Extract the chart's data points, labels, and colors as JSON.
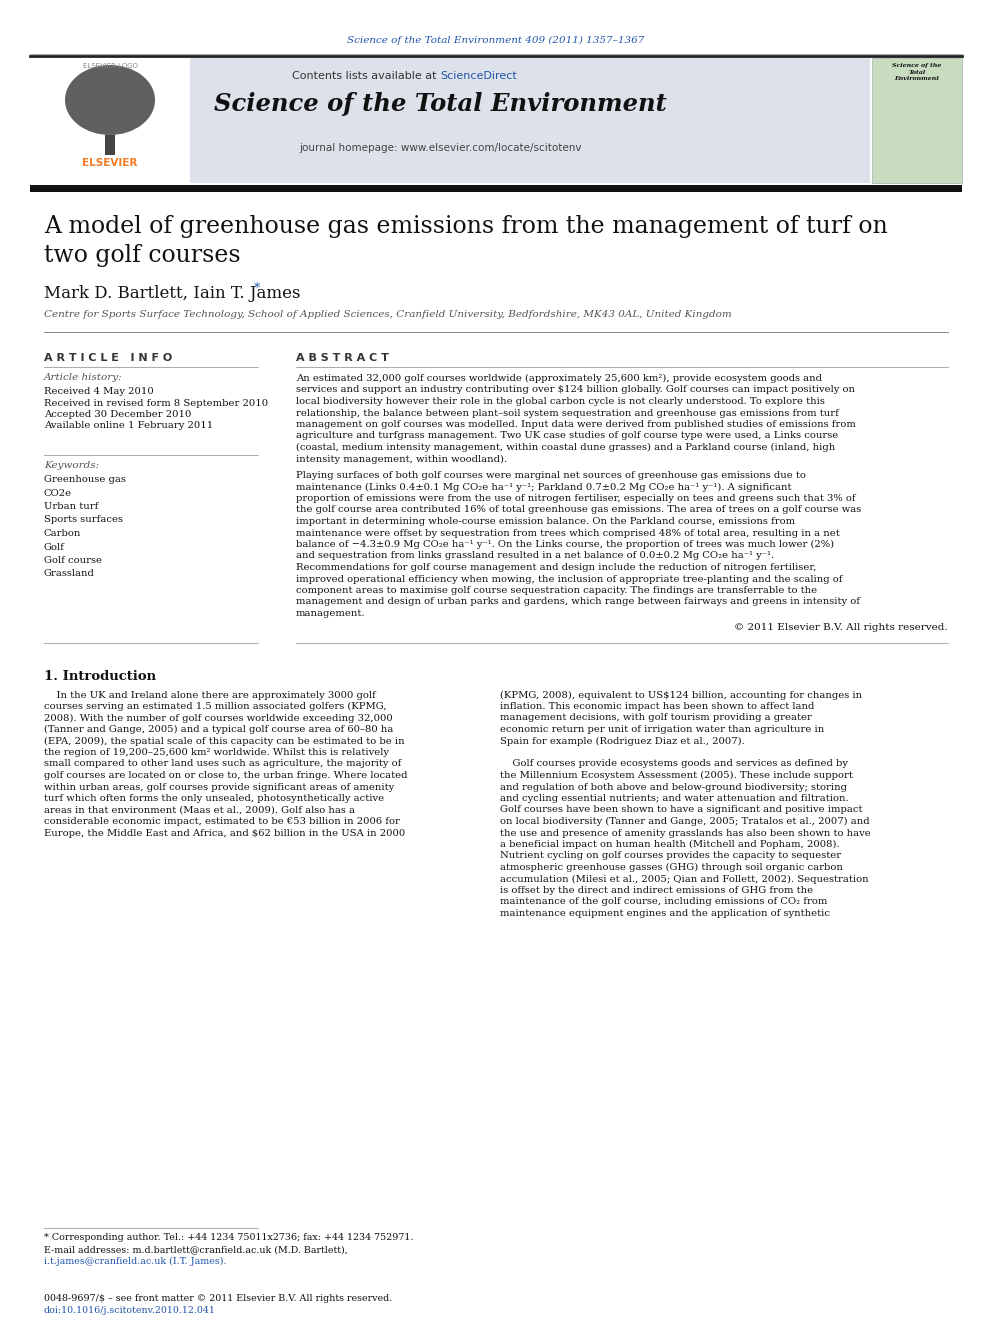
{
  "page_width": 9.92,
  "page_height": 13.23,
  "bg_color": "#ffffff",
  "top_journal_ref": "Science of the Total Environment 409 (2011) 1357–1367",
  "top_ref_color": "#2255aa",
  "header_text_line1": "Contents lists available at",
  "header_sciencedirect": "ScienceDirect",
  "header_journal_title": "Science of the Total Environment",
  "header_homepage": "journal homepage: www.elsevier.com/locate/scitotenv",
  "link_color": "#2255aa",
  "article_title_line1": "A model of greenhouse gas emissions from the management of turf on",
  "article_title_line2": "two golf courses",
  "authors": "Mark D. Bartlett, Iain T. James ",
  "author_star": "*",
  "affiliation": "Centre for Sports Surface Technology, School of Applied Sciences, Cranfield University, Bedfordshire, MK43 0AL, United Kingdom",
  "article_info_label": "A R T I C L E   I N F O",
  "abstract_label": "A B S T R A C T",
  "article_history_label": "Article history:",
  "received1": "Received 4 May 2010",
  "received2": "Received in revised form 8 September 2010",
  "accepted": "Accepted 30 December 2010",
  "available": "Available online 1 February 2011",
  "keywords_label": "Keywords:",
  "keywords": [
    "Greenhouse gas",
    "CO2e",
    "Urban turf",
    "Sports surfaces",
    "Carbon",
    "Golf",
    "Golf course",
    "Grassland"
  ],
  "abstract_lines1": [
    "An estimated 32,000 golf courses worldwide (approximately 25,600 km²), provide ecosystem goods and",
    "services and support an industry contributing over $124 billion globally. Golf courses can impact positively on",
    "local biodiversity however their role in the global carbon cycle is not clearly understood. To explore this",
    "relationship, the balance between plant–soil system sequestration and greenhouse gas emissions from turf",
    "management on golf courses was modelled. Input data were derived from published studies of emissions from",
    "agriculture and turfgrass management. Two UK case studies of golf course type were used, a Links course",
    "(coastal, medium intensity management, within coastal dune grasses) and a Parkland course (inland, high",
    "intensity management, within woodland)."
  ],
  "abstract_lines2": [
    "Playing surfaces of both golf courses were marginal net sources of greenhouse gas emissions due to",
    "maintenance (Links 0.4±0.1 Mg CO₂e ha⁻¹ y⁻¹; Parkland 0.7±0.2 Mg CO₂e ha⁻¹ y⁻¹). A significant",
    "proportion of emissions were from the use of nitrogen fertiliser, especially on tees and greens such that 3% of",
    "the golf course area contributed 16% of total greenhouse gas emissions. The area of trees on a golf course was",
    "important in determining whole-course emission balance. On the Parkland course, emissions from",
    "maintenance were offset by sequestration from trees which comprised 48% of total area, resulting in a net",
    "balance of −4.3±0.9 Mg CO₂e ha⁻¹ y⁻¹. On the Links course, the proportion of trees was much lower (2%)",
    "and sequestration from links grassland resulted in a net balance of 0.0±0.2 Mg CO₂e ha⁻¹ y⁻¹.",
    "Recommendations for golf course management and design include the reduction of nitrogen fertiliser,",
    "improved operational efficiency when mowing, the inclusion of appropriate tree-planting and the scaling of",
    "component areas to maximise golf course sequestration capacity. The findings are transferrable to the",
    "management and design of urban parks and gardens, which range between fairways and greens in intensity of",
    "management."
  ],
  "copyright_text": "© 2011 Elsevier B.V. All rights reserved.",
  "intro_heading": "1. Introduction",
  "intro_col1_lines": [
    "    In the UK and Ireland alone there are approximately 3000 golf",
    "courses serving an estimated 1.5 million associated golfers (KPMG,",
    "2008). With the number of golf courses worldwide exceeding 32,000",
    "(Tanner and Gange, 2005) and a typical golf course area of 60–80 ha",
    "(EPA, 2009), the spatial scale of this capacity can be estimated to be in",
    "the region of 19,200–25,600 km² worldwide. Whilst this is relatively",
    "small compared to other land uses such as agriculture, the majority of",
    "golf courses are located on or close to, the urban fringe. Where located",
    "within urban areas, golf courses provide significant areas of amenity",
    "turf which often forms the only unsealed, photosynthetically active",
    "areas in that environment (Maas et al., 2009). Golf also has a",
    "considerable economic impact, estimated to be €53 billion in 2006 for",
    "Europe, the Middle East and Africa, and $62 billion in the USA in 2000"
  ],
  "intro_col2_lines": [
    "(KPMG, 2008), equivalent to US$124 billion, accounting for changes in",
    "inflation. This economic impact has been shown to affect land",
    "management decisions, with golf tourism providing a greater",
    "economic return per unit of irrigation water than agriculture in",
    "Spain for example (Rodriguez Diaz et al., 2007).",
    "",
    "    Golf courses provide ecosystems goods and services as defined by",
    "the Millennium Ecosystem Assessment (2005). These include support",
    "and regulation of both above and below-ground biodiversity; storing",
    "and cycling essential nutrients; and water attenuation and filtration.",
    "Golf courses have been shown to have a significant and positive impact",
    "on local biodiversity (Tanner and Gange, 2005; Tratalos et al., 2007) and",
    "the use and presence of amenity grasslands has also been shown to have",
    "a beneficial impact on human health (Mitchell and Popham, 2008).",
    "Nutrient cycling on golf courses provides the capacity to sequester",
    "atmospheric greenhouse gasses (GHG) through soil organic carbon",
    "accumulation (Milesi et al., 2005; Qian and Follett, 2002). Sequestration",
    "is offset by the direct and indirect emissions of GHG from the",
    "maintenance of the golf course, including emissions of CO₂ from",
    "maintenance equipment engines and the application of synthetic"
  ],
  "footnote_star": "* Corresponding author. Tel.: +44 1234 75011x2736; fax: +44 1234 752971.",
  "footnote_email": "E-mail addresses: m.d.bartlett@cranfield.ac.uk (M.D. Bartlett),",
  "footnote_email2": "i.t.james@cranfield.ac.uk (I.T. James).",
  "footer_text1": "0048-9697/$ – see front matter © 2011 Elsevier B.V. All rights reserved.",
  "footer_text2": "doi:10.1016/j.scitotenv.2010.12.041",
  "gray_header_bg": "#dde1ea",
  "elsevier_orange": "#f47920",
  "black": "#000000",
  "dark_gray": "#111111",
  "mid_gray": "#555555",
  "light_gray": "#888888"
}
